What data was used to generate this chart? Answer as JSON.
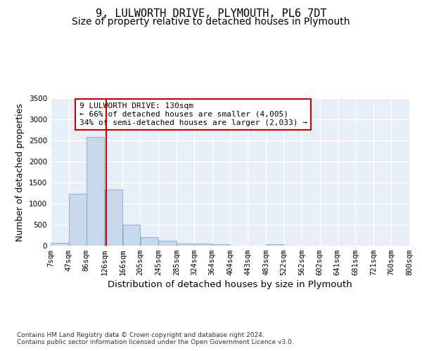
{
  "title": "9, LULWORTH DRIVE, PLYMOUTH, PL6 7DT",
  "subtitle": "Size of property relative to detached houses in Plymouth",
  "xlabel": "Distribution of detached houses by size in Plymouth",
  "ylabel": "Number of detached properties",
  "footnote1": "Contains HM Land Registry data © Crown copyright and database right 2024.",
  "footnote2": "Contains public sector information licensed under the Open Government Licence v3.0.",
  "annotation_title": "9 LULWORTH DRIVE: 130sqm",
  "annotation_line1": "← 66% of detached houses are smaller (4,005)",
  "annotation_line2": "34% of semi-detached houses are larger (2,033) →",
  "bar_edges": [
    7,
    47,
    86,
    126,
    166,
    205,
    245,
    285,
    324,
    364,
    404,
    443,
    483,
    522,
    562,
    602,
    641,
    681,
    721,
    760,
    800
  ],
  "bar_heights": [
    60,
    1230,
    2590,
    1340,
    500,
    200,
    110,
    55,
    45,
    30,
    0,
    0,
    35,
    0,
    0,
    0,
    0,
    0,
    0,
    0
  ],
  "bar_color": "#c8d8ec",
  "bar_edge_color": "#7799bb",
  "property_line_x": 130,
  "property_line_color": "#cc0000",
  "ylim": [
    0,
    3500
  ],
  "yticks": [
    0,
    500,
    1000,
    1500,
    2000,
    2500,
    3000,
    3500
  ],
  "bg_color": "#e8eef8",
  "grid_color": "#ffffff",
  "title_fontsize": 11,
  "subtitle_fontsize": 10,
  "axis_label_fontsize": 9,
  "tick_fontsize": 7.5
}
